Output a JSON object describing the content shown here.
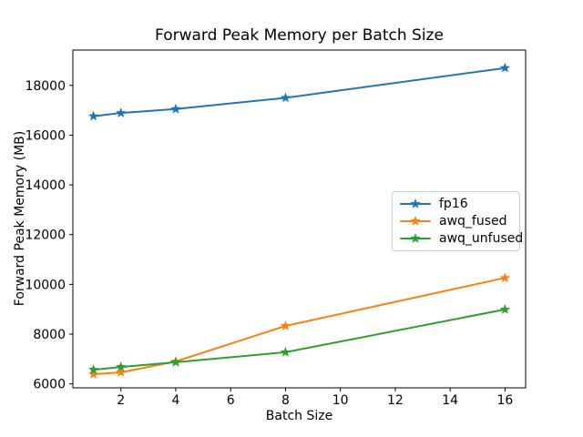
{
  "chart_data": {
    "type": "line",
    "title": "Forward Peak Memory per Batch Size",
    "xlabel": "Batch Size",
    "ylabel": "Forward Peak Memory (MB)",
    "x": [
      1,
      2,
      4,
      8,
      16
    ],
    "series": [
      {
        "name": "fp16",
        "color": "#1f77b4",
        "values": [
          16760,
          16890,
          17050,
          17500,
          18700
        ]
      },
      {
        "name": "awq_fused",
        "color": "#ff7f0e",
        "values": [
          6390,
          6460,
          6900,
          8330,
          10260
        ]
      },
      {
        "name": "awq_unfused",
        "color": "#2ca02c",
        "values": [
          6570,
          6680,
          6870,
          7270,
          8990
        ]
      }
    ],
    "marker": "star",
    "xticks": [
      2,
      4,
      6,
      8,
      10,
      12,
      14,
      16
    ],
    "yticks": [
      6000,
      8000,
      10000,
      12000,
      14000,
      16000,
      18000
    ],
    "xlim": [
      0.25,
      16.75
    ],
    "ylim": [
      5840,
      19420
    ],
    "grid": false,
    "legend_position": "center-right",
    "background_color": "#ffffff",
    "axes_color": "#000000"
  }
}
